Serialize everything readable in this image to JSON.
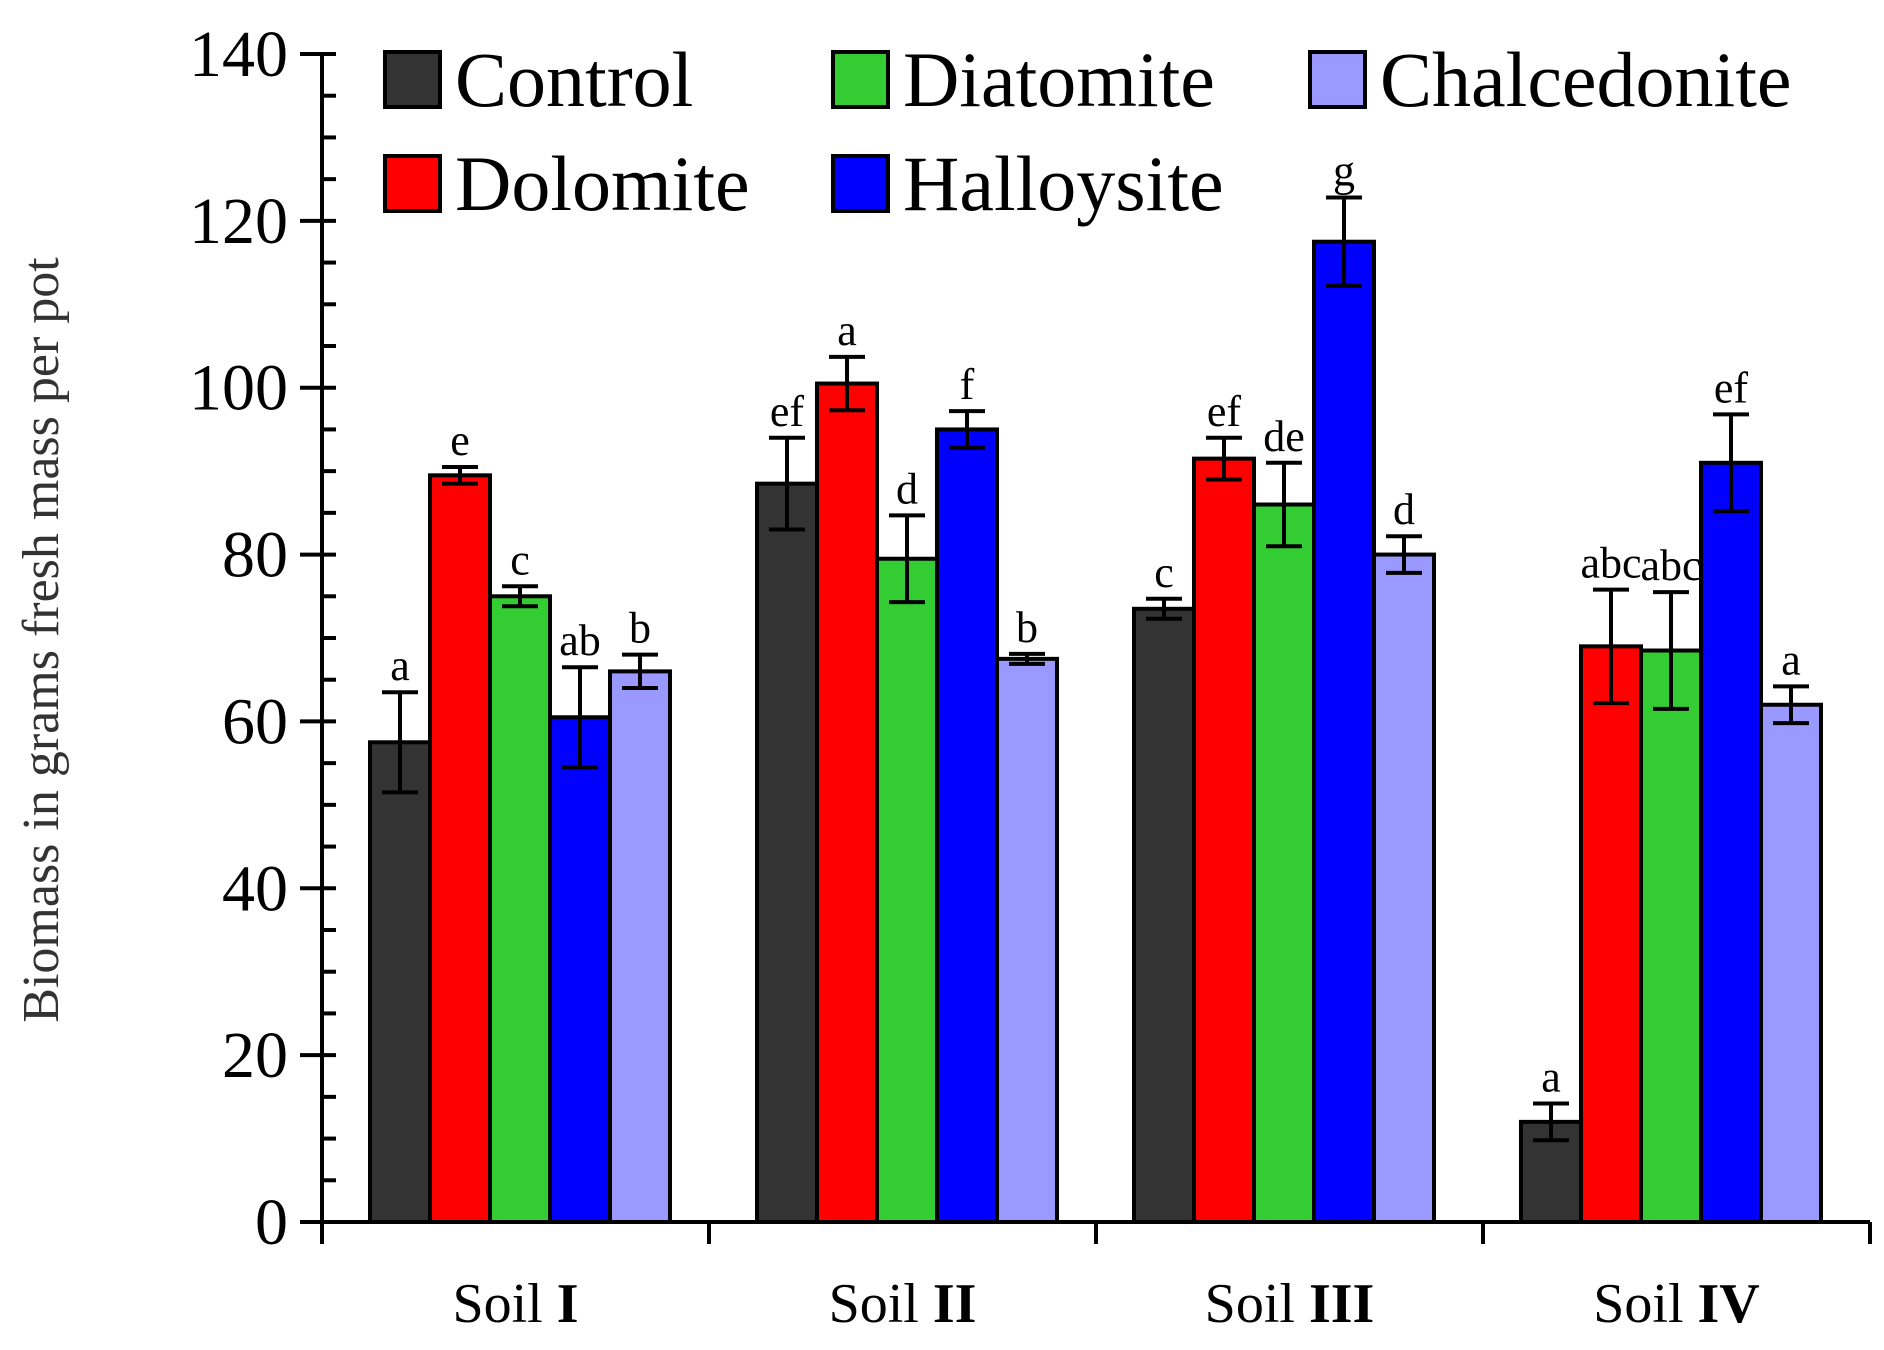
{
  "chart_data": {
    "type": "bar",
    "ylabel": "Biomass in grams fresh mass per pot",
    "ylim": [
      0,
      140
    ],
    "yticks": [
      0,
      20,
      40,
      60,
      80,
      100,
      120,
      140
    ],
    "categories": [
      {
        "prefix": "Soil ",
        "numeral": "I"
      },
      {
        "prefix": "Soil ",
        "numeral": "II"
      },
      {
        "prefix": "Soil ",
        "numeral": "III"
      },
      {
        "prefix": "Soil ",
        "numeral": "IV"
      }
    ],
    "series": [
      {
        "name": "Control",
        "color": "#333333",
        "values": [
          57.5,
          88.5,
          73.5,
          12
        ],
        "errors": [
          6,
          5.5,
          1.2,
          2.2
        ],
        "labels": [
          "a",
          "ef",
          "c",
          "a"
        ]
      },
      {
        "name": "Dolomite",
        "color": "#ff0000",
        "values": [
          89.5,
          100.5,
          91.5,
          69
        ],
        "errors": [
          1,
          3.2,
          2.5,
          6.8
        ],
        "labels": [
          "e",
          "a",
          "ef",
          "abc"
        ]
      },
      {
        "name": "Diatomite",
        "color": "#33cc33",
        "values": [
          75,
          79.5,
          86,
          68.5
        ],
        "errors": [
          1.2,
          5.2,
          5,
          7
        ],
        "labels": [
          "c",
          "d",
          "de",
          "abc"
        ]
      },
      {
        "name": "Halloysite",
        "color": "#0000ff",
        "values": [
          60.5,
          95,
          117.5,
          91
        ],
        "errors": [
          6,
          2.2,
          5.3,
          5.8
        ],
        "labels": [
          "ab",
          "f",
          "g",
          "ef"
        ]
      },
      {
        "name": "Chalcedonite",
        "color": "#9999ff",
        "values": [
          66,
          67.5,
          80,
          62
        ],
        "errors": [
          2,
          0.6,
          2.2,
          2.2
        ],
        "labels": [
          "b",
          "b",
          "d",
          "a"
        ]
      }
    ],
    "legend_placement": "top",
    "grid": false
  }
}
